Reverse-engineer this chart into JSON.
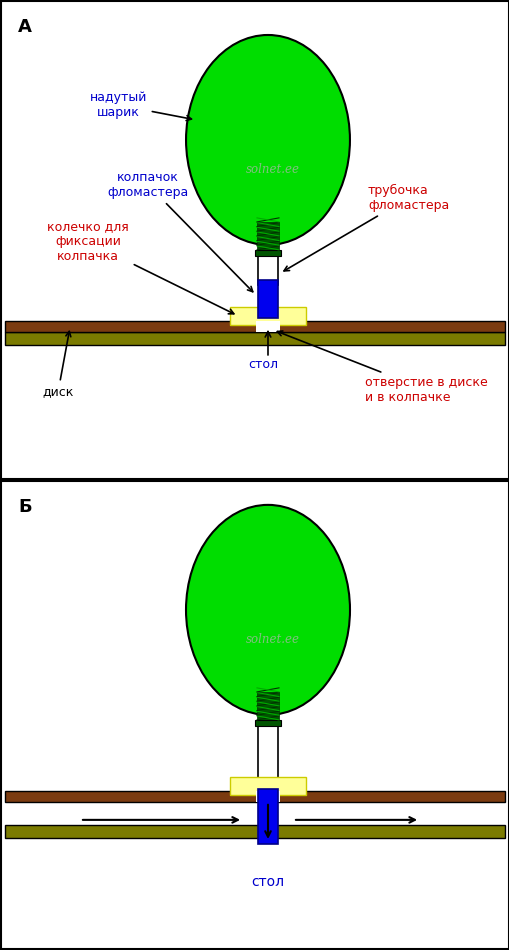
{
  "bg_color": "#ffffff",
  "border_color": "#000000",
  "balloon_color": "#00dd00",
  "balloon_outline": "#000000",
  "tube_color": "#ffffff",
  "tube_outline": "#000000",
  "cap_color": "#0000ee",
  "ring_color": "#ffff99",
  "table_dark": "#7B3B10",
  "table_olive": "#7B7B00",
  "nib_color": "#ffaa88",
  "watermark": "solnet.ee",
  "watermark_color": "#99bb99",
  "label_A": "А",
  "label_B": "Б",
  "label_balloon": "надутый\nшарик",
  "label_cap": "колпачок\nфломастера",
  "label_tube": "трубочка\nфломастера",
  "label_ring": "колечко для\nфиксации\nколпачка",
  "label_table_A": "стол",
  "label_disk": "диск",
  "label_hole": "отверстие в диске\nи в колпачке",
  "label_table_B": "стол",
  "text_color_black": "#000000",
  "text_color_blue": "#0000cc",
  "text_color_red": "#cc0000",
  "text_color_darkblue": "#000088"
}
